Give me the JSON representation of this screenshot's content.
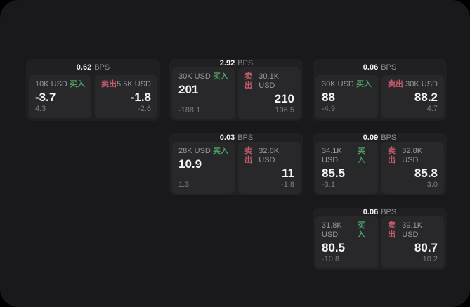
{
  "labels": {
    "bps_unit": "BPS",
    "buy": "买入",
    "sell": "卖出"
  },
  "colors": {
    "background": "#19191b",
    "card": "#202022",
    "panel": "#28282a",
    "buy_green": "#4c9e64",
    "sell_red": "#c75d6c",
    "value_white": "#f4f4f5",
    "muted_gray": "#98989c"
  },
  "cards": [
    {
      "bps": "0.62",
      "row": 1,
      "col": 1,
      "buy": {
        "amount": "10K USD",
        "price": "-3.7",
        "delta": "4.3"
      },
      "sell": {
        "amount": "5.5K USD",
        "price": "-1.8",
        "delta": "-2.6"
      }
    },
    {
      "bps": "2.92",
      "row": 1,
      "col": 2,
      "buy": {
        "amount": "30K USD",
        "price": "201",
        "delta": "-188.1"
      },
      "sell": {
        "amount": "30.1K USD",
        "price": "210",
        "delta": "196.5"
      }
    },
    {
      "bps": "0.06",
      "row": 1,
      "col": 3,
      "buy": {
        "amount": "30K USD",
        "price": "88",
        "delta": "-4.9"
      },
      "sell": {
        "amount": "30K USD",
        "price": "88.2",
        "delta": "4.7"
      }
    },
    {
      "bps": "0.03",
      "row": 2,
      "col": 2,
      "buy": {
        "amount": "28K USD",
        "price": "10.9",
        "delta": "1.3"
      },
      "sell": {
        "amount": "32.6K USD",
        "price": "11",
        "delta": "-1.8"
      }
    },
    {
      "bps": "0.09",
      "row": 2,
      "col": 3,
      "buy": {
        "amount": "34.1K USD",
        "price": "85.5",
        "delta": "-3.1"
      },
      "sell": {
        "amount": "32.8K USD",
        "price": "85.8",
        "delta": "3.0"
      }
    },
    {
      "bps": "0.06",
      "row": 3,
      "col": 3,
      "buy": {
        "amount": "31.8K USD",
        "price": "80.5",
        "delta": "-10.8"
      },
      "sell": {
        "amount": "39.1K USD",
        "price": "80.7",
        "delta": "10.2"
      }
    }
  ]
}
